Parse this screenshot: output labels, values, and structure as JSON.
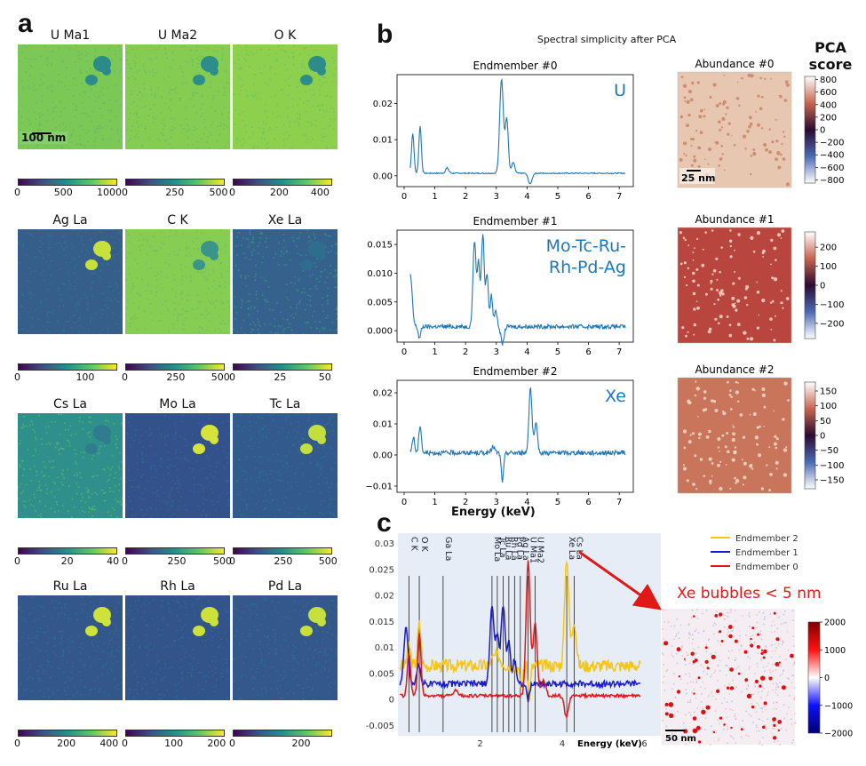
{
  "panel_a": {
    "label": "a",
    "scale_bar": "100 nm",
    "maps": [
      {
        "title": "U Ma1",
        "ticks": [
          "0",
          "500",
          "1000"
        ],
        "tick_pos": [
          0,
          0.4,
          0.83
        ],
        "bg": "#7bc856",
        "blob": "#2b8b8a",
        "speckle": "#5fb66a"
      },
      {
        "title": "U Ma2",
        "ticks": [
          "0",
          "250",
          "500"
        ],
        "tick_pos": [
          0,
          0.44,
          0.88
        ],
        "bg": "#84cc52",
        "blob": "#2c8d8a",
        "speckle": "#63b969"
      },
      {
        "title": "O K",
        "ticks": [
          "0",
          "200",
          "400"
        ],
        "tick_pos": [
          0,
          0.41,
          0.82
        ],
        "bg": "#8dd04e",
        "blob": "#2c8c8a",
        "speckle": "#6cbe63"
      },
      {
        "title": "Ag La",
        "ticks": [
          "0",
          "100"
        ],
        "tick_pos": [
          0,
          0.62
        ],
        "bg": "#355e8b",
        "blob": "#c7e13a",
        "speckle": "#2f7c8e"
      },
      {
        "title": "C K",
        "ticks": [
          "0",
          "250",
          "500"
        ],
        "tick_pos": [
          0,
          0.45,
          0.9
        ],
        "bg": "#86cd53",
        "blob": "#3a948a",
        "speckle": "#6abc64"
      },
      {
        "title": "Xe La",
        "ticks": [
          "0",
          "25",
          "50"
        ],
        "tick_pos": [
          0,
          0.45,
          0.9
        ],
        "bg": "#34628c",
        "blob": "#2f6d8e",
        "speckle": "#3f9a84"
      },
      {
        "title": "Cs La",
        "ticks": [
          "0",
          "20",
          "40"
        ],
        "tick_pos": [
          0,
          0.47,
          0.93
        ],
        "bg": "#2f8f8b",
        "blob": "#2f7c8e",
        "speckle": "#5fbf6a"
      },
      {
        "title": "Mo La",
        "ticks": [
          "0",
          "250",
          "500"
        ],
        "tick_pos": [
          0,
          0.46,
          0.92
        ],
        "bg": "#33518a",
        "blob": "#d5e33b",
        "speckle": "#30708e"
      },
      {
        "title": "Tc La",
        "ticks": [
          "0",
          "250",
          "500"
        ],
        "tick_pos": [
          0,
          0.45,
          0.9
        ],
        "bg": "#325a8c",
        "blob": "#c4df3c",
        "speckle": "#2f778e"
      },
      {
        "title": "Ru La",
        "ticks": [
          "0",
          "200",
          "400"
        ],
        "tick_pos": [
          0,
          0.43,
          0.86
        ],
        "bg": "#33578b",
        "blob": "#cfe23a",
        "speckle": "#2f748e"
      },
      {
        "title": "Rh La",
        "ticks": [
          "0",
          "100",
          "200"
        ],
        "tick_pos": [
          0,
          0.43,
          0.86
        ],
        "bg": "#33548b",
        "blob": "#cce13a",
        "speckle": "#2f728e"
      },
      {
        "title": "Pd La",
        "ticks": [
          "0",
          "200"
        ],
        "tick_pos": [
          0,
          0.63
        ],
        "bg": "#34588b",
        "blob": "#c7e03b",
        "speckle": "#2f758e"
      }
    ]
  },
  "panel_b": {
    "label": "b",
    "title": "Spectral simplicity after PCA",
    "colorbar_title": "PCA score",
    "x_axis_label": "Energy  (keV)",
    "x_ticks": [
      "0",
      "1",
      "2",
      "3",
      "4",
      "5",
      "6",
      "7"
    ],
    "scale_bar": "25 nm",
    "endmembers": [
      {
        "title": "Endmember #0",
        "annotation": "U",
        "y_ticks": [
          "0.00",
          "0.01",
          "0.02"
        ],
        "y_tick_vals": [
          0,
          0.01,
          0.02
        ],
        "ylim": [
          -0.003,
          0.028
        ],
        "abundance_title": "Abundance #0",
        "abundance_bg": "#e8c7b0",
        "abundance_spot": "#c9846a",
        "cbar_ticks": [
          "800",
          "600",
          "400",
          "200",
          "0",
          "−200",
          "−400",
          "−600",
          "−800"
        ],
        "cbar_range": [
          -850,
          850
        ]
      },
      {
        "title": "Endmember #1",
        "annotation": "Mo-Tc-Ru-\nRh-Pd-Ag",
        "y_ticks": [
          "0.000",
          "0.005",
          "0.010",
          "0.015"
        ],
        "y_tick_vals": [
          0,
          0.005,
          0.01,
          0.015
        ],
        "ylim": [
          -0.002,
          0.0175
        ],
        "abundance_title": "Abundance #1",
        "abundance_bg": "#b8463f",
        "abundance_spot": "#f2d7c2",
        "cbar_ticks": [
          "200",
          "100",
          "0",
          "−100",
          "−200"
        ],
        "cbar_range": [
          -280,
          280
        ]
      },
      {
        "title": "Endmember #2",
        "annotation": "Xe",
        "y_ticks": [
          "−0.01",
          "0.00",
          "0.01",
          "0.02"
        ],
        "y_tick_vals": [
          -0.01,
          0,
          0.01,
          0.02
        ],
        "ylim": [
          -0.012,
          0.024
        ],
        "abundance_title": "Abundance #2",
        "abundance_bg": "#c8755c",
        "abundance_spot": "#f0d9c6",
        "cbar_ticks": [
          "150",
          "100",
          "50",
          "0",
          "−50",
          "−100",
          "−150"
        ],
        "cbar_range": [
          -180,
          180
        ]
      }
    ]
  },
  "panel_c": {
    "label": "c",
    "x_axis_label": "Energy (keV)",
    "x_ticks": [
      "2",
      "4",
      "6"
    ],
    "x_tick_vals": [
      2,
      4,
      6
    ],
    "xlim": [
      0,
      6.4
    ],
    "y_ticks": [
      "0.03",
      "0.025",
      "0.02",
      "0.015",
      "0.01",
      "0.005",
      "0",
      "-0.005"
    ],
    "y_tick_vals": [
      0.03,
      0.025,
      0.02,
      0.015,
      0.01,
      0.005,
      0,
      -0.005
    ],
    "ylim": [
      -0.007,
      0.032
    ],
    "peak_lines": [
      {
        "label": "C K",
        "x": 0.27
      },
      {
        "label": "O K",
        "x": 0.52
      },
      {
        "label": "Ga La",
        "x": 1.1
      },
      {
        "label": "Mo La",
        "x": 2.29
      },
      {
        "label": "Tc La",
        "x": 2.42
      },
      {
        "label": "Ru La",
        "x": 2.56
      },
      {
        "label": "Rh La",
        "x": 2.7
      },
      {
        "label": "Pd La",
        "x": 2.84
      },
      {
        "label": "Ag La",
        "x": 2.98
      },
      {
        "label": "U Ma1",
        "x": 3.17
      },
      {
        "label": "U Ma2",
        "x": 3.34
      },
      {
        "label": "Xe La",
        "x": 4.11
      },
      {
        "label": "Cs La",
        "x": 4.29
      }
    ],
    "legend": [
      {
        "name": "Endmember 2",
        "color": "#f5c518"
      },
      {
        "name": "Endmember 1",
        "color": "#1a1ac8"
      },
      {
        "name": "Endmember 0",
        "color": "#e01818"
      }
    ],
    "callout": "Xe bubbles < 5 nm",
    "scale_bar": "50 nm",
    "cbar_ticks": [
      "2000",
      "1000",
      "0",
      "−1000",
      "−2000"
    ],
    "cbar_range": [
      -2000,
      2000
    ]
  }
}
